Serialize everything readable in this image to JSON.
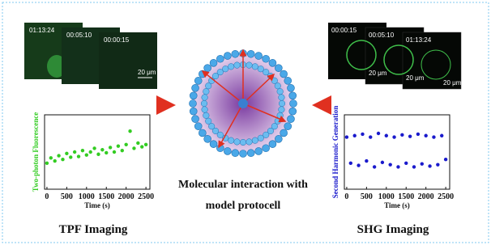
{
  "tpf_images": {
    "timestamps": [
      "01:13:24",
      "00:05:10",
      "00:00:15"
    ],
    "scale_bar": "20 μm"
  },
  "shg_images": {
    "timestamps": [
      "00:00:15",
      "00:05:10",
      "01:13:24"
    ],
    "scale_bars": [
      "20 μm",
      "20 μm",
      "20 μm"
    ]
  },
  "center_text": [
    "Molecular interaction with",
    "model protocell"
  ],
  "captions": [
    "TPF Imaging",
    "SHG Imaging"
  ],
  "chart_data": [
    {
      "type": "scatter",
      "y_label": "Two-photon Fluorescence",
      "x_label": "Time (s)",
      "color": "#33cc22",
      "x": [
        0,
        100,
        200,
        300,
        400,
        500,
        600,
        700,
        800,
        900,
        1000,
        1100,
        1200,
        1300,
        1400,
        1500,
        1600,
        1700,
        1800,
        1900,
        2000,
        2100,
        2200,
        2300,
        2400,
        2500
      ],
      "values": [
        0.35,
        0.42,
        0.38,
        0.45,
        0.4,
        0.48,
        0.43,
        0.5,
        0.44,
        0.52,
        0.46,
        0.5,
        0.55,
        0.47,
        0.53,
        0.49,
        0.56,
        0.5,
        0.58,
        0.52,
        0.6,
        0.78,
        0.55,
        0.62,
        0.57,
        0.6
      ],
      "xlim": [
        -60,
        2600
      ],
      "xticks": [
        0,
        500,
        1000,
        1500,
        2000,
        2500
      ],
      "ylim": [
        0,
        1
      ]
    },
    {
      "type": "scatter",
      "y_label": "Second Harmonic Generation",
      "x_label": "Time (s)",
      "color": "#1a1acc",
      "x": [
        0,
        100,
        200,
        300,
        400,
        500,
        600,
        700,
        800,
        900,
        1000,
        1100,
        1200,
        1300,
        1400,
        1500,
        1600,
        1700,
        1800,
        1900,
        2000,
        2100,
        2200,
        2300,
        2400,
        2500
      ],
      "values": [
        0.7,
        0.35,
        0.72,
        0.32,
        0.74,
        0.38,
        0.7,
        0.3,
        0.75,
        0.36,
        0.72,
        0.33,
        0.7,
        0.3,
        0.73,
        0.35,
        0.71,
        0.3,
        0.74,
        0.34,
        0.72,
        0.31,
        0.7,
        0.33,
        0.72,
        0.4
      ],
      "xlim": [
        -60,
        2600
      ],
      "xticks": [
        0,
        500,
        1000,
        1500,
        2000,
        2500
      ],
      "ylim": [
        0,
        1
      ]
    }
  ]
}
